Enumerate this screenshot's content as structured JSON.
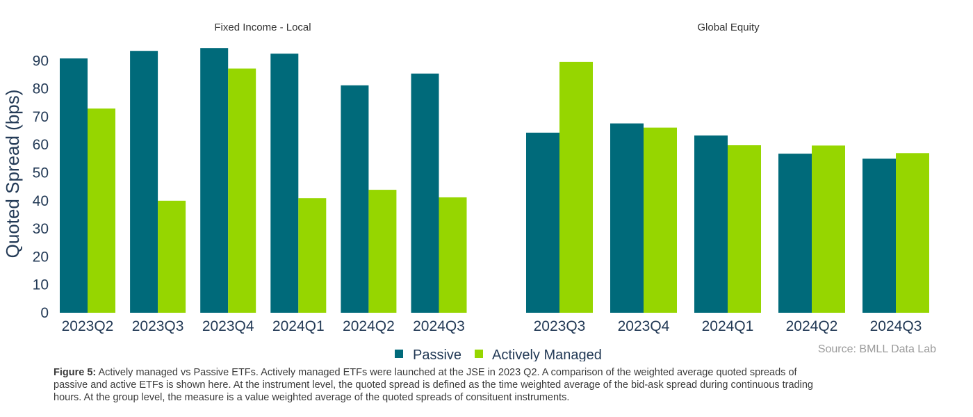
{
  "chart_data": {
    "type": "bar",
    "ylabel": "Quoted Spread (bps)",
    "ylim": [
      0,
      95
    ],
    "yticks": [
      0,
      10,
      20,
      30,
      40,
      50,
      60,
      70,
      80,
      90
    ],
    "series_names": [
      "Passive",
      "Actively Managed"
    ],
    "colors": {
      "Passive": "#006a7a",
      "Actively Managed": "#96d600"
    },
    "legend_position": "bottom-center",
    "grid": false,
    "panels": [
      {
        "title": "Fixed Income - Local",
        "categories": [
          "2023Q2",
          "2023Q3",
          "2023Q4",
          "2024Q1",
          "2024Q2",
          "2024Q3"
        ],
        "series": [
          {
            "name": "Passive",
            "values": [
              90.8,
              93.5,
              94.5,
              92.5,
              81.2,
              85.4
            ]
          },
          {
            "name": "Actively Managed",
            "values": [
              72.9,
              40.0,
              87.2,
              40.9,
              43.9,
              41.2
            ]
          }
        ]
      },
      {
        "title": "Global Equity",
        "categories": [
          "2023Q3",
          "2023Q4",
          "2024Q1",
          "2024Q2",
          "2024Q3"
        ],
        "series": [
          {
            "name": "Passive",
            "values": [
              64.3,
              67.6,
              63.3,
              56.8,
              55.0
            ]
          },
          {
            "name": "Actively Managed",
            "values": [
              89.6,
              66.1,
              59.8,
              59.7,
              57.0
            ]
          }
        ]
      }
    ]
  },
  "source": "Source: BMLL Data Lab",
  "caption": {
    "label": "Figure 5:",
    "text": " Actively managed vs Passive ETFs. Actively managed ETFs were launched at the JSE in 2023 Q2. A comparison of the weighted average quoted spreads of passive and active ETFs is shown here. At the instrument level, the quoted spread is defined as the time weighted average of the bid-ask spread during continuous trading hours. At the group level, the measure is a value weighted average of the quoted spreads of consituent instruments."
  }
}
